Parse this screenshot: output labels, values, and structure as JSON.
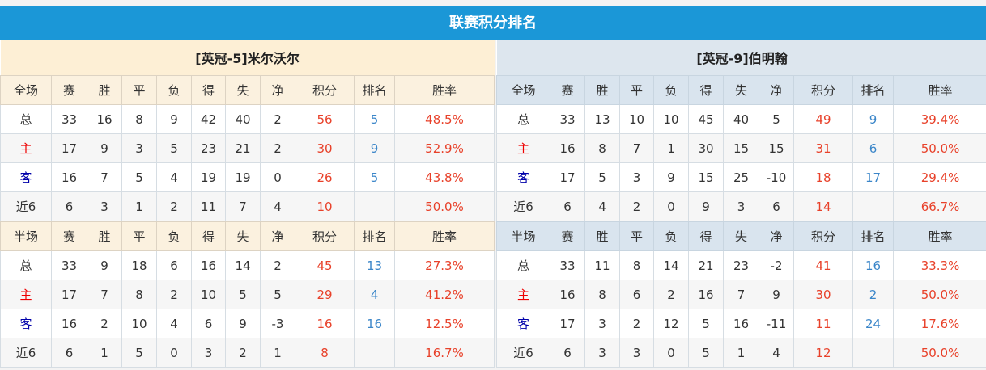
{
  "title": "联赛积分排名",
  "colors": {
    "title_bg": "#1b97d7",
    "points": "#e8412a",
    "rank": "#3b86c9",
    "home_label": "#ee0000",
    "away_label": "#0000aa"
  },
  "columns": [
    "赛",
    "胜",
    "平",
    "负",
    "得",
    "失",
    "净",
    "积分",
    "排名",
    "胜率"
  ],
  "teams": [
    {
      "name": "[英冠-5]米尔沃尔",
      "full": {
        "label": "全场",
        "rows": [
          [
            "总",
            "33",
            "16",
            "8",
            "9",
            "42",
            "40",
            "2",
            "56",
            "5",
            "48.5%"
          ],
          [
            "主",
            "17",
            "9",
            "3",
            "5",
            "23",
            "21",
            "2",
            "30",
            "9",
            "52.9%"
          ],
          [
            "客",
            "16",
            "7",
            "5",
            "4",
            "19",
            "19",
            "0",
            "26",
            "5",
            "43.8%"
          ],
          [
            "近6",
            "6",
            "3",
            "1",
            "2",
            "11",
            "7",
            "4",
            "10",
            "",
            "50.0%"
          ]
        ]
      },
      "half": {
        "label": "半场",
        "rows": [
          [
            "总",
            "33",
            "9",
            "18",
            "6",
            "16",
            "14",
            "2",
            "45",
            "13",
            "27.3%"
          ],
          [
            "主",
            "17",
            "7",
            "8",
            "2",
            "10",
            "5",
            "5",
            "29",
            "4",
            "41.2%"
          ],
          [
            "客",
            "16",
            "2",
            "10",
            "4",
            "6",
            "9",
            "-3",
            "16",
            "16",
            "12.5%"
          ],
          [
            "近6",
            "6",
            "1",
            "5",
            "0",
            "3",
            "2",
            "1",
            "8",
            "",
            "16.7%"
          ]
        ]
      }
    },
    {
      "name": "[英冠-9]伯明翰",
      "full": {
        "label": "全场",
        "rows": [
          [
            "总",
            "33",
            "13",
            "10",
            "10",
            "45",
            "40",
            "5",
            "49",
            "9",
            "39.4%"
          ],
          [
            "主",
            "16",
            "8",
            "7",
            "1",
            "30",
            "15",
            "15",
            "31",
            "6",
            "50.0%"
          ],
          [
            "客",
            "17",
            "5",
            "3",
            "9",
            "15",
            "25",
            "-10",
            "18",
            "17",
            "29.4%"
          ],
          [
            "近6",
            "6",
            "4",
            "2",
            "0",
            "9",
            "3",
            "6",
            "14",
            "",
            "66.7%"
          ]
        ]
      },
      "half": {
        "label": "半场",
        "rows": [
          [
            "总",
            "33",
            "11",
            "8",
            "14",
            "21",
            "23",
            "-2",
            "41",
            "16",
            "33.3%"
          ],
          [
            "主",
            "16",
            "8",
            "6",
            "2",
            "16",
            "7",
            "9",
            "30",
            "2",
            "50.0%"
          ],
          [
            "客",
            "17",
            "3",
            "2",
            "12",
            "5",
            "16",
            "-11",
            "11",
            "24",
            "17.6%"
          ],
          [
            "近6",
            "6",
            "3",
            "3",
            "0",
            "5",
            "1",
            "4",
            "12",
            "",
            "50.0%"
          ]
        ]
      }
    }
  ]
}
